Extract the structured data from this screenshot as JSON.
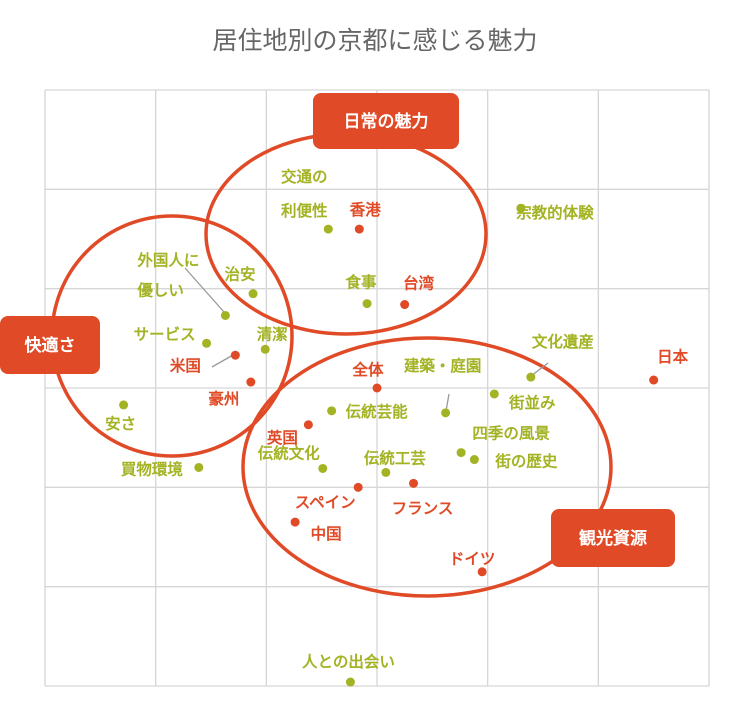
{
  "colors": {
    "accent": "#e04a26",
    "green": "#a3b324",
    "grid": "#d6d6d6",
    "title": "#666666",
    "leader": "#999999"
  },
  "chart_data": {
    "type": "scatter",
    "title": "居住地別の京都に感じる魅力",
    "xlabel": "",
    "ylabel": "",
    "grid": true,
    "legend": "none",
    "xlim": [
      0,
      6
    ],
    "ylim": [
      0,
      6
    ],
    "series": [
      {
        "color": "green",
        "points": [
          {
            "label": "交通の利便性",
            "lines": [
              "交通の",
              "利便性"
            ],
            "x": 2.56,
            "y": 4.6
          },
          {
            "label": "宗教的体験",
            "x": 4.3,
            "y": 4.81
          },
          {
            "label": "外国人に優しい",
            "lines": [
              "外国人に",
              "優しい"
            ],
            "x": 1.63,
            "y": 3.73
          },
          {
            "label": "治安",
            "x": 1.88,
            "y": 3.95
          },
          {
            "label": "食事",
            "x": 2.91,
            "y": 3.85
          },
          {
            "label": "サービス",
            "x": 1.46,
            "y": 3.45
          },
          {
            "label": "清潔",
            "x": 1.99,
            "y": 3.39
          },
          {
            "label": "文化遺産",
            "x": 4.39,
            "y": 3.11
          },
          {
            "label": "建築・庭園",
            "x": 3.62,
            "y": 2.75
          },
          {
            "label": "伝統芸能",
            "x": 2.59,
            "y": 2.77
          },
          {
            "label": "街並み",
            "x": 4.06,
            "y": 2.94
          },
          {
            "label": "安さ",
            "x": 0.71,
            "y": 2.83
          },
          {
            "label": "四季の風景",
            "x": 3.76,
            "y": 2.35
          },
          {
            "label": "街の歴史",
            "x": 3.88,
            "y": 2.28
          },
          {
            "label": "伝統文化",
            "x": 2.51,
            "y": 2.19
          },
          {
            "label": "伝統工芸",
            "x": 3.08,
            "y": 2.15
          },
          {
            "label": "買物環境",
            "x": 1.39,
            "y": 2.2
          },
          {
            "label": "人との出会い",
            "x": 2.76,
            "y": 0.04
          }
        ]
      },
      {
        "color": "red",
        "points": [
          {
            "label": "香港",
            "x": 2.84,
            "y": 4.6
          },
          {
            "label": "台湾",
            "x": 3.25,
            "y": 3.84
          },
          {
            "label": "米国",
            "x": 1.72,
            "y": 3.33
          },
          {
            "label": "豪州",
            "x": 1.86,
            "y": 3.06
          },
          {
            "label": "日本",
            "x": 5.5,
            "y": 3.08
          },
          {
            "label": "全体",
            "x": 3.0,
            "y": 3.0
          },
          {
            "label": "英国",
            "x": 2.38,
            "y": 2.63
          },
          {
            "label": "スペイン",
            "x": 2.83,
            "y": 2.0
          },
          {
            "label": "フランス",
            "x": 3.33,
            "y": 2.04
          },
          {
            "label": "中国",
            "x": 2.26,
            "y": 1.65
          },
          {
            "label": "ドイツ",
            "x": 3.95,
            "y": 1.15
          }
        ]
      }
    ],
    "clusters": [
      {
        "name": "日常の魅力"
      },
      {
        "name": "快適さ"
      },
      {
        "name": "観光資源"
      }
    ]
  }
}
